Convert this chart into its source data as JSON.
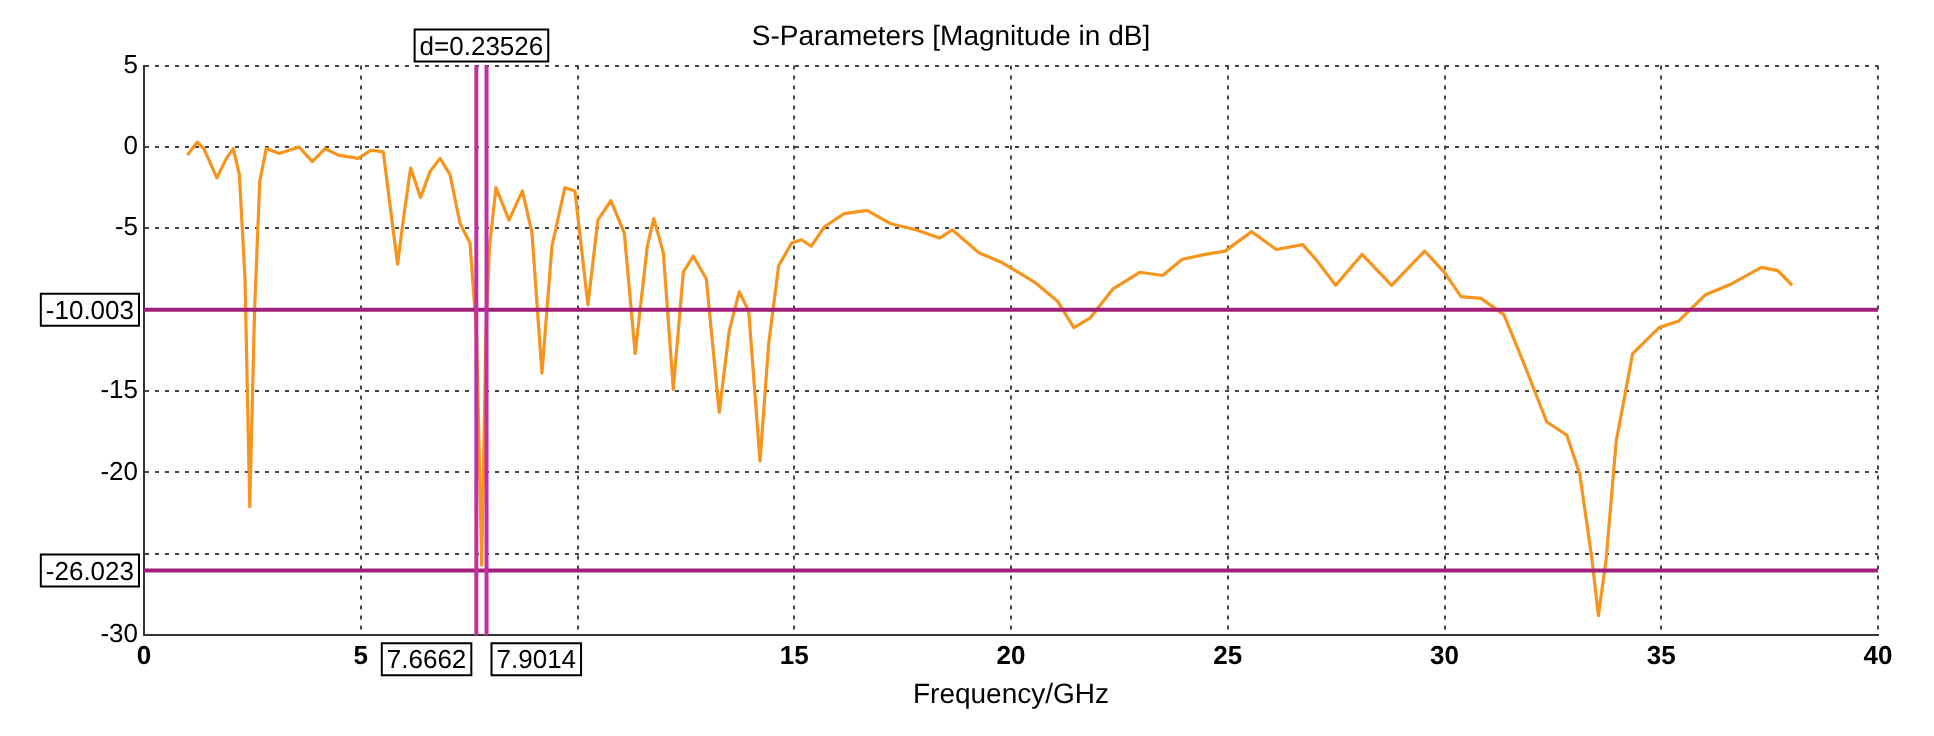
{
  "chart_data": {
    "type": "line",
    "title": "S-Parameters [Magnitude in dB]",
    "xlabel": "Frequency/GHz",
    "xlim": [
      0,
      40
    ],
    "xticks": [
      0,
      5,
      {
        "value": 10,
        "label": null
      },
      15,
      20,
      25,
      30,
      35,
      40
    ],
    "ylim": [
      -30,
      5
    ],
    "yticks": [
      5,
      0,
      -5,
      {
        "value": -10,
        "label": null
      },
      -15,
      -20,
      {
        "value": -25,
        "label": null
      },
      -30
    ],
    "grid": true,
    "legend": false,
    "line_style": "solid",
    "marker": "none",
    "ref_lines": [
      {
        "axis": "y",
        "value": -10.003,
        "label": "-10.003",
        "color": "#a0207a"
      },
      {
        "axis": "y",
        "value": -26.023,
        "label": "-26.023",
        "color": "#a0207a"
      },
      {
        "axis": "x",
        "value": 7.6662,
        "label": "7.6662",
        "color": "#c030a0"
      },
      {
        "axis": "x",
        "value": 7.9014,
        "label": "7.9014",
        "color": "#c030a0"
      }
    ],
    "annotations": [
      "d=0.23526"
    ],
    "series": [
      {
        "color": "#f7941d",
        "x": [
          1.0,
          1.23,
          1.38,
          1.68,
          1.9,
          2.06,
          2.2,
          2.33,
          2.44,
          2.55,
          2.67,
          2.82,
          3.12,
          3.58,
          3.88,
          4.18,
          4.48,
          4.94,
          5.24,
          5.52,
          5.7,
          5.85,
          6.0,
          6.15,
          6.38,
          6.6,
          6.83,
          7.06,
          7.29,
          7.52,
          7.58,
          7.67,
          7.79,
          7.89,
          7.97,
          8.12,
          8.42,
          8.73,
          8.95,
          9.18,
          9.41,
          9.71,
          9.94,
          10.24,
          10.47,
          10.77,
          11.08,
          11.33,
          11.61,
          11.76,
          11.98,
          12.21,
          12.44,
          12.67,
          12.97,
          13.27,
          13.5,
          13.73,
          13.95,
          14.21,
          14.41,
          14.64,
          14.94,
          15.17,
          15.39,
          15.7,
          16.15,
          16.68,
          17.21,
          17.82,
          18.35,
          18.65,
          19.26,
          19.79,
          20.54,
          21.08,
          21.45,
          21.83,
          22.36,
          22.97,
          23.5,
          23.95,
          24.48,
          24.94,
          25.55,
          26.12,
          26.73,
          27.03,
          27.49,
          28.1,
          28.78,
          29.54,
          30.0,
          30.38,
          30.84,
          31.37,
          31.83,
          32.36,
          32.82,
          33.12,
          33.4,
          33.55,
          33.73,
          33.96,
          34.34,
          34.95,
          35.4,
          36.01,
          36.63,
          37.31,
          37.69,
          38.02
        ],
        "values": [
          -0.5,
          0.3,
          -0.1,
          -1.9,
          -0.7,
          -0.1,
          -1.7,
          -8.1,
          -22.1,
          -10.1,
          -2.1,
          -0.1,
          -0.4,
          0,
          -0.9,
          -0.1,
          -0.5,
          -0.7,
          -0.2,
          -0.3,
          -4.1,
          -7.2,
          -4.1,
          -1.3,
          -3.1,
          -1.5,
          -0.7,
          -1.7,
          -4.7,
          -5.9,
          -8.1,
          -11.3,
          -25.7,
          -11.3,
          -6.1,
          -2.5,
          -4.5,
          -2.7,
          -5.3,
          -13.9,
          -6.1,
          -2.5,
          -2.7,
          -9.7,
          -4.5,
          -3.3,
          -5.3,
          -12.7,
          -6.1,
          -4.4,
          -6.5,
          -14.9,
          -7.7,
          -6.7,
          -8.1,
          -16.3,
          -11.3,
          -8.9,
          -10.1,
          -19.3,
          -12.1,
          -7.3,
          -5.9,
          -5.7,
          -6.1,
          -4.9,
          -4.1,
          -3.9,
          -4.7,
          -5.1,
          -5.6,
          -5.1,
          -6.5,
          -7.1,
          -8.3,
          -9.5,
          -11.1,
          -10.5,
          -8.7,
          -7.7,
          -7.9,
          -6.9,
          -6.6,
          -6.4,
          -5.2,
          -6.3,
          -6.0,
          -6.9,
          -8.5,
          -6.6,
          -8.5,
          -6.4,
          -7.7,
          -9.2,
          -9.3,
          -10.3,
          -13.3,
          -16.9,
          -17.7,
          -20.1,
          -25.3,
          -28.8,
          -25.3,
          -18.1,
          -12.7,
          -11.1,
          -10.7,
          -9.1,
          -8.4,
          -7.4,
          -7.6,
          -8.5
        ]
      }
    ]
  }
}
